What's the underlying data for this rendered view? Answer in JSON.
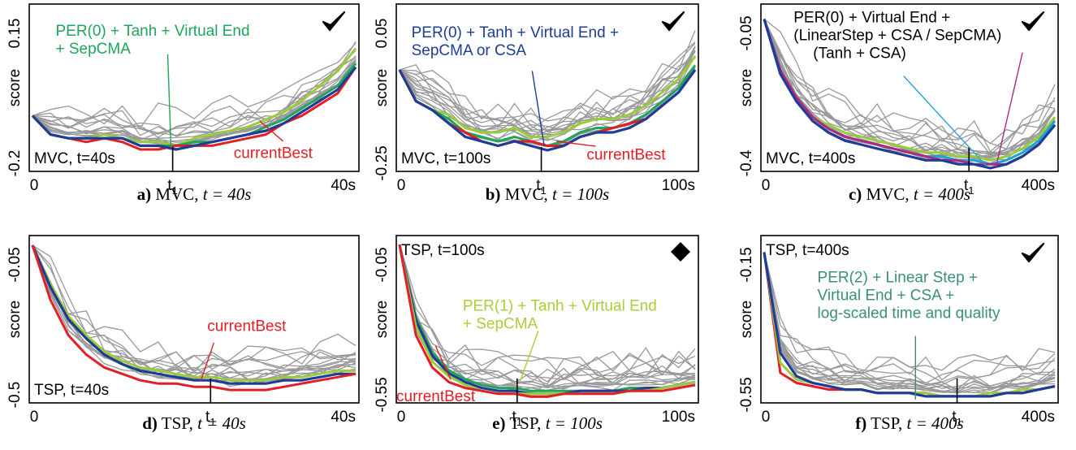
{
  "captions": [
    {
      "letter": "a)",
      "task": "MVC",
      "math": "t = 40s"
    },
    {
      "letter": "b)",
      "task": "MVC",
      "math": "t = 100s"
    },
    {
      "letter": "c)",
      "task": "MVC",
      "math": "t = 400s"
    },
    {
      "letter": "d)",
      "task": "TSP",
      "math": "t = 40s"
    },
    {
      "letter": "e)",
      "task": "TSP",
      "math": "t = 100s"
    },
    {
      "letter": "f)",
      "task": "TSP",
      "math": "t = 400s"
    }
  ],
  "colors": {
    "gray": "#999999",
    "green": "#1fa65b",
    "red": "#e31e26",
    "blue": "#1f3c96",
    "lime": "#9acb3b",
    "teal": "#3a8f7a",
    "cyan": "#1aa5d8",
    "magenta": "#b0287f",
    "annot_lime": "#a8cf3a",
    "annot_teal": "#3a8f7a"
  },
  "chart_data": [
    {
      "type": "line",
      "ylabel": "score",
      "xticks": [
        "0",
        "t1",
        "40s"
      ],
      "yticks": [
        "0.15",
        "-0.2"
      ],
      "ylim": [
        -0.25,
        0.18
      ],
      "label": "MVC, t=40s",
      "mark": "check",
      "annotations": [
        {
          "text": [
            "PER(0) + Tanh + Virtual End",
            "+ SepCMA"
          ],
          "color": "green"
        },
        {
          "text": [
            "currentBest"
          ],
          "color": "red"
        }
      ],
      "series": [
        {
          "color": "lime",
          "values": [
            -0.11,
            -0.16,
            -0.17,
            -0.17,
            -0.16,
            -0.17,
            -0.18,
            -0.18,
            -0.19,
            -0.17,
            -0.16,
            -0.15,
            -0.14,
            -0.12,
            -0.1,
            -0.07,
            -0.03,
            0.01,
            0.07
          ]
        },
        {
          "color": "green",
          "values": [
            -0.11,
            -0.16,
            -0.17,
            -0.17,
            -0.17,
            -0.17,
            -0.19,
            -0.19,
            -0.19,
            -0.18,
            -0.18,
            -0.17,
            -0.16,
            -0.14,
            -0.12,
            -0.09,
            -0.06,
            -0.03,
            0.03
          ]
        },
        {
          "color": "red",
          "values": [
            -0.11,
            -0.16,
            -0.17,
            -0.18,
            -0.17,
            -0.18,
            -0.2,
            -0.2,
            -0.19,
            -0.19,
            -0.19,
            -0.18,
            -0.17,
            -0.16,
            -0.13,
            -0.11,
            -0.08,
            -0.05,
            0.02
          ]
        },
        {
          "color": "blue",
          "values": [
            -0.11,
            -0.16,
            -0.17,
            -0.17,
            -0.17,
            -0.17,
            -0.19,
            -0.19,
            -0.2,
            -0.19,
            -0.18,
            -0.17,
            -0.16,
            -0.15,
            -0.13,
            -0.1,
            -0.07,
            -0.04,
            0.02
          ]
        }
      ]
    },
    {
      "type": "line",
      "ylabel": "score",
      "xticks": [
        "0",
        "t1",
        "100s"
      ],
      "yticks": [
        "0.05",
        "-0.25"
      ],
      "ylim": [
        -0.28,
        0.08
      ],
      "label": "MVC, t=100s",
      "mark": "check",
      "annotations": [
        {
          "text": [
            "PER(0) + Tanh + Virtual End +",
            "SepCMA or CSA"
          ],
          "color": "blue"
        },
        {
          "text": [
            "currentBest"
          ],
          "color": "red"
        }
      ],
      "series": [
        {
          "color": "lime",
          "values": [
            -0.06,
            -0.13,
            -0.15,
            -0.16,
            -0.19,
            -0.2,
            -0.2,
            -0.19,
            -0.21,
            -0.21,
            -0.2,
            -0.18,
            -0.17,
            -0.17,
            -0.16,
            -0.14,
            -0.11,
            -0.08,
            -0.03
          ]
        },
        {
          "color": "green",
          "values": [
            -0.06,
            -0.13,
            -0.15,
            -0.17,
            -0.2,
            -0.21,
            -0.22,
            -0.21,
            -0.22,
            -0.23,
            -0.22,
            -0.2,
            -0.19,
            -0.19,
            -0.18,
            -0.16,
            -0.13,
            -0.1,
            -0.05
          ]
        },
        {
          "color": "red",
          "values": [
            -0.06,
            -0.13,
            -0.15,
            -0.18,
            -0.2,
            -0.22,
            -0.23,
            -0.22,
            -0.22,
            -0.23,
            -0.23,
            -0.21,
            -0.2,
            -0.19,
            -0.18,
            -0.17,
            -0.14,
            -0.11,
            -0.06
          ]
        },
        {
          "color": "blue",
          "values": [
            -0.06,
            -0.13,
            -0.15,
            -0.18,
            -0.21,
            -0.22,
            -0.23,
            -0.22,
            -0.23,
            -0.24,
            -0.23,
            -0.21,
            -0.2,
            -0.2,
            -0.19,
            -0.17,
            -0.14,
            -0.11,
            -0.06
          ]
        }
      ]
    },
    {
      "type": "line",
      "ylabel": "score",
      "xticks": [
        "0",
        "t1",
        "400s"
      ],
      "yticks": [
        "-0.05",
        "-0.4"
      ],
      "ylim": [
        -0.43,
        -0.02
      ],
      "label": "MVC, t=400s",
      "mark": "check",
      "annotations": [
        {
          "text": [
            "PER(0) + Virtual End +",
            "(LinearStep + CSA / SepCMA)",
            "(Tanh + CSA)"
          ],
          "color": "black"
        }
      ],
      "series": [
        {
          "color": "lime",
          "values": [
            -0.05,
            -0.18,
            -0.25,
            -0.3,
            -0.32,
            -0.34,
            -0.35,
            -0.36,
            -0.37,
            -0.38,
            -0.39,
            -0.39,
            -0.4,
            -0.4,
            -0.41,
            -0.4,
            -0.38,
            -0.35,
            -0.3
          ]
        },
        {
          "color": "cyan",
          "values": [
            -0.05,
            -0.18,
            -0.25,
            -0.3,
            -0.33,
            -0.35,
            -0.36,
            -0.37,
            -0.38,
            -0.39,
            -0.4,
            -0.4,
            -0.41,
            -0.41,
            -0.42,
            -0.41,
            -0.39,
            -0.36,
            -0.31
          ]
        },
        {
          "color": "magenta",
          "values": [
            -0.05,
            -0.18,
            -0.25,
            -0.3,
            -0.33,
            -0.35,
            -0.36,
            -0.37,
            -0.38,
            -0.39,
            -0.4,
            -0.41,
            -0.41,
            -0.42,
            -0.42,
            -0.42,
            -0.4,
            -0.37,
            -0.32
          ]
        },
        {
          "color": "blue",
          "values": [
            -0.05,
            -0.19,
            -0.26,
            -0.31,
            -0.34,
            -0.36,
            -0.37,
            -0.38,
            -0.39,
            -0.4,
            -0.41,
            -0.41,
            -0.42,
            -0.42,
            -0.43,
            -0.42,
            -0.4,
            -0.37,
            -0.32
          ]
        }
      ]
    },
    {
      "type": "line",
      "ylabel": "score",
      "xticks": [
        "0",
        "t1",
        "40s"
      ],
      "yticks": [
        "-0.05",
        "-0.5"
      ],
      "ylim": [
        -0.53,
        -0.03
      ],
      "label": "TSP, t=40s",
      "mark": "none",
      "annotations": [
        {
          "text": [
            "currentBest"
          ],
          "color": "red"
        }
      ],
      "series": [
        {
          "color": "lime",
          "values": [
            -0.05,
            -0.17,
            -0.27,
            -0.33,
            -0.38,
            -0.41,
            -0.43,
            -0.44,
            -0.45,
            -0.46,
            -0.46,
            -0.47,
            -0.47,
            -0.47,
            -0.46,
            -0.46,
            -0.45,
            -0.44,
            -0.44
          ]
        },
        {
          "color": "blue",
          "values": [
            -0.05,
            -0.18,
            -0.28,
            -0.34,
            -0.39,
            -0.42,
            -0.44,
            -0.45,
            -0.46,
            -0.47,
            -0.47,
            -0.48,
            -0.48,
            -0.48,
            -0.47,
            -0.47,
            -0.46,
            -0.45,
            -0.45
          ]
        },
        {
          "color": "red",
          "values": [
            -0.05,
            -0.22,
            -0.33,
            -0.39,
            -0.43,
            -0.45,
            -0.47,
            -0.48,
            -0.48,
            -0.49,
            -0.49,
            -0.5,
            -0.5,
            -0.5,
            -0.49,
            -0.48,
            -0.47,
            -0.46,
            -0.45
          ]
        }
      ]
    },
    {
      "type": "line",
      "ylabel": "score",
      "xticks": [
        "0",
        "t1",
        "100s"
      ],
      "yticks": [
        "-0.05",
        "-0.55"
      ],
      "ylim": [
        -0.58,
        -0.03
      ],
      "label": "TSP, t=100s",
      "mark": "diamond",
      "annotations": [
        {
          "text": [
            "PER(1) + Tanh + Virtual End",
            "+ SepCMA"
          ],
          "color": "annot_lime"
        },
        {
          "text": [
            "currentBest"
          ],
          "color": "red"
        }
      ],
      "series": [
        {
          "color": "green",
          "values": [
            -0.05,
            -0.3,
            -0.42,
            -0.48,
            -0.51,
            -0.53,
            -0.54,
            -0.54,
            -0.55,
            -0.55,
            -0.55,
            -0.55,
            -0.55,
            -0.55,
            -0.54,
            -0.54,
            -0.54,
            -0.53,
            -0.52
          ]
        },
        {
          "color": "blue",
          "values": [
            -0.05,
            -0.31,
            -0.43,
            -0.49,
            -0.52,
            -0.54,
            -0.55,
            -0.55,
            -0.56,
            -0.56,
            -0.56,
            -0.55,
            -0.55,
            -0.55,
            -0.55,
            -0.54,
            -0.54,
            -0.53,
            -0.52
          ]
        },
        {
          "color": "lime",
          "values": [
            -0.05,
            -0.33,
            -0.45,
            -0.5,
            -0.53,
            -0.55,
            -0.56,
            -0.56,
            -0.56,
            -0.56,
            -0.56,
            -0.56,
            -0.56,
            -0.56,
            -0.55,
            -0.55,
            -0.54,
            -0.53,
            -0.52
          ]
        },
        {
          "color": "red",
          "values": [
            -0.05,
            -0.36,
            -0.47,
            -0.52,
            -0.54,
            -0.55,
            -0.56,
            -0.56,
            -0.57,
            -0.57,
            -0.56,
            -0.56,
            -0.56,
            -0.56,
            -0.55,
            -0.55,
            -0.55,
            -0.54,
            -0.53
          ]
        }
      ]
    },
    {
      "type": "line",
      "ylabel": "score",
      "xticks": [
        "0",
        "t1",
        "400s"
      ],
      "yticks": [
        "-0.15",
        "-0.55"
      ],
      "ylim": [
        -0.6,
        -0.12
      ],
      "label": "TSP, t=400s",
      "mark": "check",
      "annotations": [
        {
          "text": [
            "PER(2) + Linear Step +",
            "Virtual End + CSA +",
            "log-scaled time and quality"
          ],
          "color": "annot_teal"
        }
      ],
      "series": [
        {
          "color": "red",
          "values": [
            -0.16,
            -0.52,
            -0.55,
            -0.56,
            -0.57,
            -0.57,
            -0.57,
            -0.58,
            -0.58,
            -0.58,
            -0.58,
            -0.59,
            -0.59,
            -0.59,
            -0.59,
            -0.58,
            -0.58,
            -0.57,
            -0.56
          ]
        },
        {
          "color": "lime",
          "values": [
            -0.16,
            -0.49,
            -0.54,
            -0.55,
            -0.56,
            -0.57,
            -0.57,
            -0.58,
            -0.58,
            -0.58,
            -0.58,
            -0.59,
            -0.59,
            -0.59,
            -0.58,
            -0.58,
            -0.57,
            -0.57,
            -0.56
          ]
        },
        {
          "color": "blue",
          "values": [
            -0.16,
            -0.46,
            -0.53,
            -0.55,
            -0.56,
            -0.57,
            -0.57,
            -0.58,
            -0.58,
            -0.58,
            -0.59,
            -0.59,
            -0.59,
            -0.59,
            -0.59,
            -0.58,
            -0.58,
            -0.57,
            -0.56
          ]
        }
      ]
    }
  ]
}
